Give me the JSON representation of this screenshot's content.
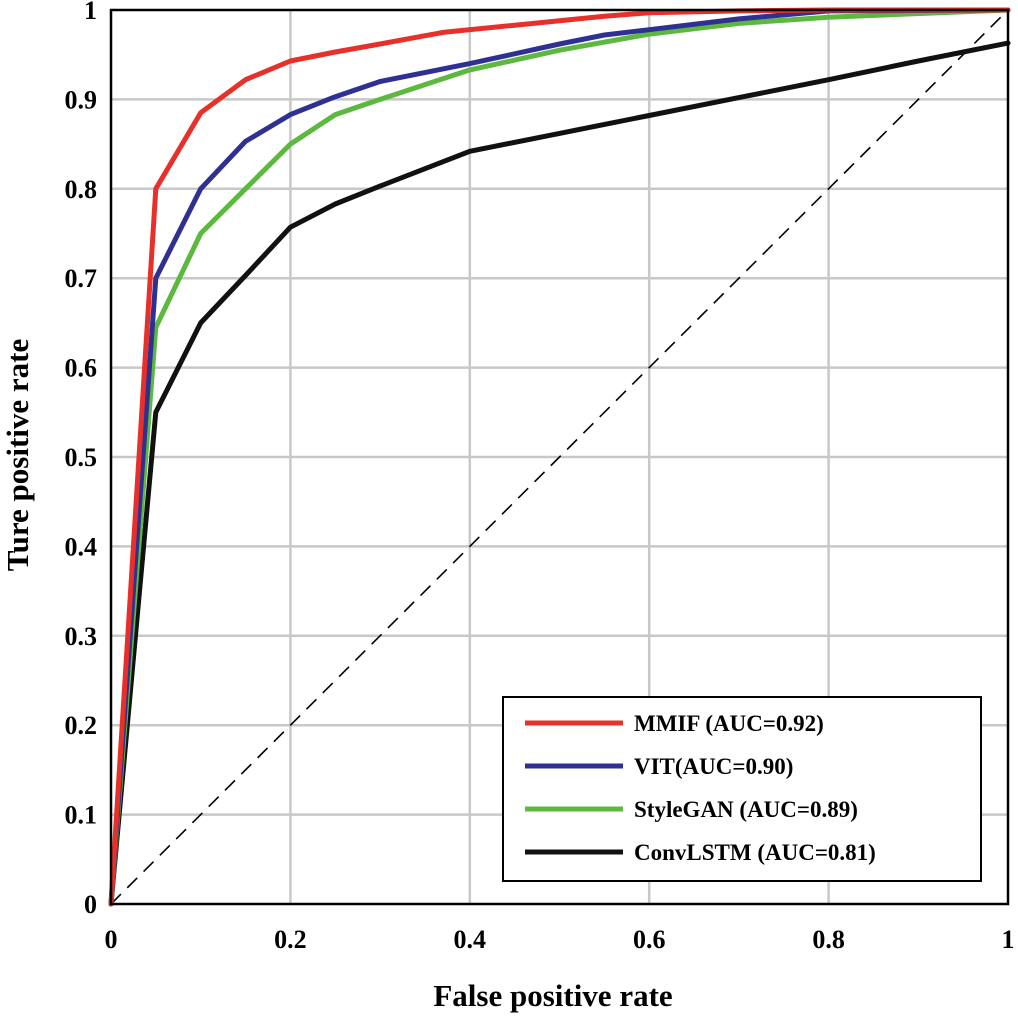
{
  "chart_data": {
    "type": "line",
    "title": "",
    "xlabel": "False positive rate",
    "ylabel": "Ture positive rate",
    "xlim": [
      0,
      1
    ],
    "ylim": [
      0,
      1
    ],
    "grid": true,
    "legend_position": "bottom-right",
    "x_ticks": [
      {
        "value": 0,
        "label": "0"
      },
      {
        "value": 0.2,
        "label": "0.2"
      },
      {
        "value": 0.4,
        "label": "0.4"
      },
      {
        "value": 0.6,
        "label": "0.6"
      },
      {
        "value": 0.8,
        "label": "0.8"
      },
      {
        "value": 1,
        "label": "1"
      }
    ],
    "y_ticks": [
      {
        "value": 0,
        "label": "0"
      },
      {
        "value": 0.1,
        "label": "0.1"
      },
      {
        "value": 0.2,
        "label": "0.2"
      },
      {
        "value": 0.3,
        "label": "0.3"
      },
      {
        "value": 0.4,
        "label": "0.4"
      },
      {
        "value": 0.5,
        "label": "0.5"
      },
      {
        "value": 0.6,
        "label": "0.6"
      },
      {
        "value": 0.7,
        "label": "0.7"
      },
      {
        "value": 0.8,
        "label": "0.8"
      },
      {
        "value": 0.9,
        "label": "0.9"
      },
      {
        "value": 1,
        "label": "1"
      }
    ],
    "reference_line": {
      "name": "chance",
      "x": [
        0,
        1
      ],
      "y": [
        0,
        1
      ],
      "color": "#000000",
      "style": "dashed"
    },
    "series": [
      {
        "name": "MMIF (AUC=0.92)",
        "color": "#e8302a",
        "x": [
          0,
          0.05,
          0.1,
          0.15,
          0.2,
          0.25,
          0.3,
          0.37,
          0.45,
          0.55,
          0.6,
          0.7,
          0.8,
          1.0
        ],
        "y": [
          0,
          0.8,
          0.885,
          0.922,
          0.943,
          0.953,
          0.962,
          0.975,
          0.983,
          0.993,
          0.997,
          0.999,
          1.0,
          1.0
        ]
      },
      {
        "name": "VIT(AUC=0.90)",
        "color": "#2e3192",
        "x": [
          0,
          0.05,
          0.1,
          0.15,
          0.2,
          0.25,
          0.3,
          0.4,
          0.5,
          0.55,
          0.6,
          0.7,
          0.8,
          1.0
        ],
        "y": [
          0,
          0.7,
          0.8,
          0.853,
          0.883,
          0.903,
          0.92,
          0.94,
          0.962,
          0.972,
          0.978,
          0.99,
          0.999,
          1.0
        ]
      },
      {
        "name": "StyleGAN (AUC=0.89)",
        "color": "#5cb83e",
        "x": [
          0,
          0.05,
          0.1,
          0.15,
          0.2,
          0.25,
          0.3,
          0.4,
          0.5,
          0.6,
          0.7,
          0.8,
          1.0
        ],
        "y": [
          0,
          0.645,
          0.75,
          0.8,
          0.85,
          0.883,
          0.9,
          0.933,
          0.955,
          0.973,
          0.985,
          0.992,
          1.0
        ]
      },
      {
        "name": "ConvLSTM (AUC=0.81)",
        "color": "#111111",
        "x": [
          0,
          0.05,
          0.1,
          0.15,
          0.2,
          0.25,
          0.3,
          0.4,
          0.5,
          0.6,
          0.7,
          0.8,
          0.9,
          1.0
        ],
        "y": [
          0,
          0.55,
          0.65,
          0.703,
          0.757,
          0.783,
          0.803,
          0.842,
          0.862,
          0.882,
          0.902,
          0.922,
          0.943,
          0.963
        ]
      }
    ]
  }
}
